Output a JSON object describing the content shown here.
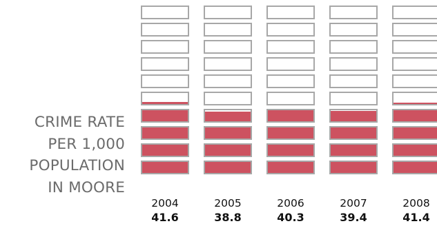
{
  "title_lines": [
    "CRIME RATE",
    "PER 1,000",
    "POPULATION",
    "IN MOORE"
  ],
  "colors": {
    "filled": "#cd5260",
    "empty": "#ffffff",
    "border": "#a7a7a7",
    "title_text": "#6b6b6b"
  },
  "chart_data": {
    "type": "bar",
    "categories": [
      "2004",
      "2005",
      "2006",
      "2007",
      "2008"
    ],
    "values": [
      41.6,
      38.8,
      40.3,
      39.4,
      41.4
    ],
    "value_labels": [
      "41.6",
      "38.8",
      "40.3",
      "39.4",
      "41.4"
    ],
    "units_per_icon": 10,
    "icons_per_column": 10,
    "title": "CRIME RATE PER 1,000 POPULATION IN MOORE",
    "xlabel": "",
    "ylabel": "",
    "ylim": [
      0,
      100
    ],
    "grid": false,
    "legend": "none"
  }
}
